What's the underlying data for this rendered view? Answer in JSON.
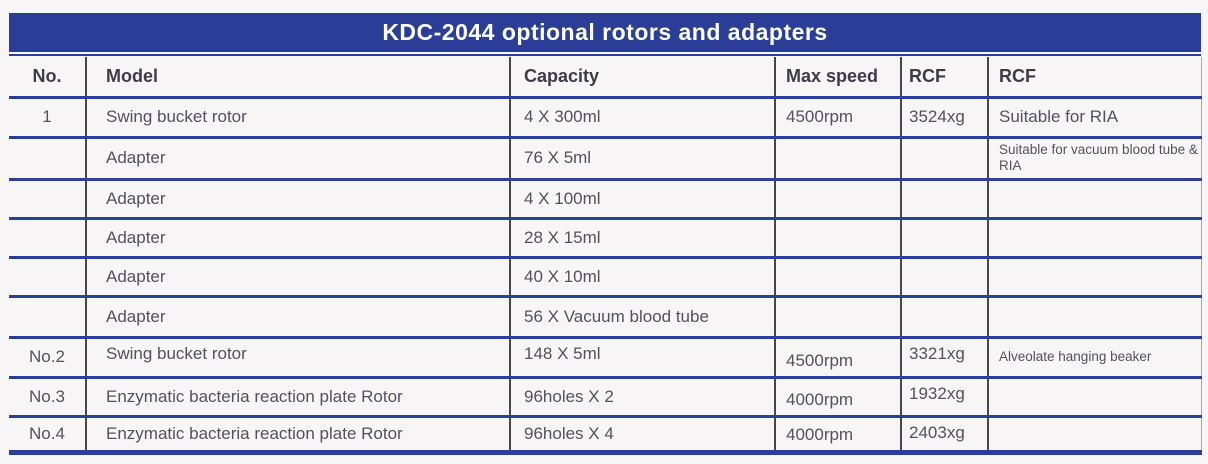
{
  "title": "KDC-2044 optional rotors and adapters",
  "colors": {
    "title_bar": "#2a3e97",
    "row_separator": "#2b3f99",
    "column_divider": "#46464c",
    "background": "#f7f5f6",
    "body_text": "#51525c",
    "header_text": "#3b3c45",
    "title_text": "#ffffff"
  },
  "table": {
    "headers": [
      "No.",
      "Model",
      "Capacity",
      "Max speed",
      "RCF",
      "RCF"
    ],
    "rows": [
      {
        "no": "1",
        "model": "Swing bucket rotor",
        "capacity": "4 X 300ml",
        "speed": "4500rpm",
        "rcf": "3524xg",
        "note": "Suitable for RIA"
      },
      {
        "no": "",
        "model": "Adapter",
        "capacity": "76 X 5ml",
        "speed": "",
        "rcf": "",
        "note": "Suitable for vacuum blood tube & RIA"
      },
      {
        "no": "",
        "model": "Adapter",
        "capacity": "4 X 100ml",
        "speed": "",
        "rcf": "",
        "note": ""
      },
      {
        "no": "",
        "model": "Adapter",
        "capacity": "28 X 15ml",
        "speed": "",
        "rcf": "",
        "note": ""
      },
      {
        "no": "",
        "model": "Adapter",
        "capacity": "40 X 10ml",
        "speed": "",
        "rcf": "",
        "note": ""
      },
      {
        "no": "",
        "model": "Adapter",
        "capacity": "56 X Vacuum blood tube",
        "speed": "",
        "rcf": "",
        "note": ""
      },
      {
        "no": "No.2",
        "model": "Swing bucket rotor",
        "capacity": "148 X 5ml",
        "speed": "4500rpm",
        "rcf": "3321xg",
        "note": "Alveolate hanging beaker"
      },
      {
        "no": "No.3",
        "model": "Enzymatic bacteria reaction plate Rotor",
        "capacity": "96holes X 2",
        "speed": "4000rpm",
        "rcf": "1932xg",
        "note": ""
      },
      {
        "no": "No.4",
        "model": "Enzymatic bacteria reaction plate Rotor",
        "capacity": "96holes X 4",
        "speed": "4000rpm",
        "rcf": "2403xg",
        "note": ""
      }
    ]
  }
}
